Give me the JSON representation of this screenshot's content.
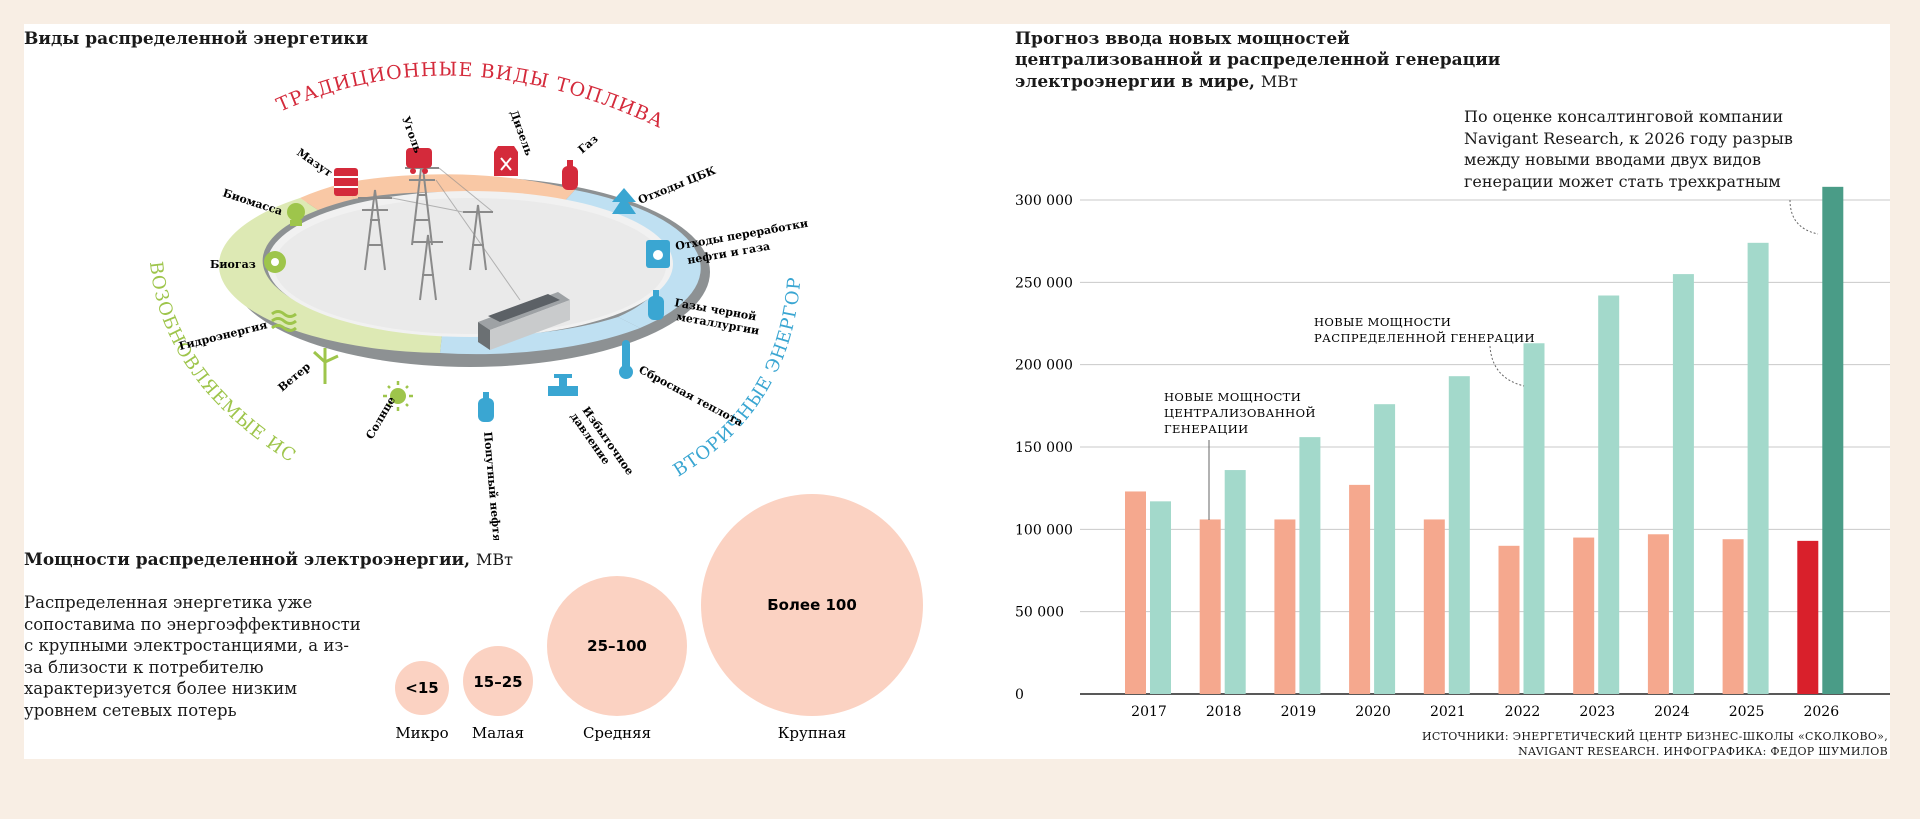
{
  "left_title": "Виды распределенной энергетики",
  "diagram": {
    "arcs": {
      "traditional": "ТРАДИЦИОННЫЕ ВИДЫ ТОПЛИВА",
      "renewable": "ВОЗОБНОВЛЯЕМЫЕ ИСТОЧНИКИ",
      "secondary": "ВТОРИЧНЫЕ ЭНЕРГОРЕСУРСЫ"
    },
    "items": [
      {
        "label": "Мазут",
        "icon": "barrel-icon",
        "group": "traditional"
      },
      {
        "label": "Уголь",
        "icon": "coal-cart-icon",
        "group": "traditional"
      },
      {
        "label": "Дизель",
        "icon": "jerrycan-icon",
        "group": "traditional"
      },
      {
        "label": "Газ",
        "icon": "gas-cylinder-icon",
        "group": "traditional"
      },
      {
        "label": "Биомасса",
        "icon": "sprout-icon",
        "group": "renewable"
      },
      {
        "label": "Биогаз",
        "icon": "biogas-icon",
        "group": "renewable"
      },
      {
        "label": "Гидроэнергия",
        "icon": "waves-icon",
        "group": "renewable"
      },
      {
        "label": "Ветер",
        "icon": "wind-turbine-icon",
        "group": "renewable"
      },
      {
        "label": "Солнце",
        "icon": "sun-icon",
        "group": "renewable"
      },
      {
        "label": "Отходы ЦБК",
        "icon": "tree-icon",
        "group": "secondary"
      },
      {
        "label": "Отходы переработки нефти и газа",
        "icon": "oil-barrel-icon",
        "group": "secondary"
      },
      {
        "label": "Газы черной металлургии",
        "icon": "gas-cylinder-icon",
        "group": "secondary"
      },
      {
        "label": "Сбросная теплота",
        "icon": "thermometer-icon",
        "group": "secondary"
      },
      {
        "label": "Избыточное давление",
        "icon": "valve-icon",
        "group": "secondary"
      },
      {
        "label": "Попутный нефтяной газ",
        "icon": "gas-cylinder-icon",
        "group": "secondary"
      }
    ]
  },
  "capacity": {
    "title": "Мощности распределенной электроэнергии,",
    "unit": "МВт",
    "description": "Распределенная энергетика уже сопоставима по энергоэффективности с крупными электростанциями, а из-за близости к потребителю характеризуется более низким уровнем сетевых потерь",
    "circles": [
      {
        "value": "<15",
        "label": "Микро"
      },
      {
        "value": "15–25",
        "label": "Малая"
      },
      {
        "value": "25–100",
        "label": "Средняя"
      },
      {
        "value": "Более 100",
        "label": "Крупная"
      }
    ]
  },
  "right_title": {
    "line1": "Прогноз ввода новых мощностей",
    "line2": "централизованной и распределенной генерации",
    "line3": "электроэнергии в мире,",
    "unit": "МВт"
  },
  "note": "По оценке консалтинговой компании Navigant Research, к 2026 году разрыв между новыми вводами двух видов генерации может стать трехкратным",
  "annotations": {
    "centralized": [
      "НОВЫЕ МОЩНОСТИ",
      "ЦЕНТРАЛИЗОВАННОЙ",
      "ГЕНЕРАЦИИ"
    ],
    "distributed": [
      "НОВЫЕ МОЩНОСТИ",
      "РАСПРЕДЕЛЕННОЙ ГЕНЕРАЦИИ"
    ]
  },
  "source": {
    "line1": "ИСТОЧНИКИ: ЭНЕРГЕТИЧЕСКИЙ ЦЕНТР БИЗНЕС-ШКОЛЫ «СКОЛКОВО»,",
    "line2": "NAVIGANT RESEARCH. ИНФОГРАФИКА: ФЕДОР ШУМИЛОВ"
  },
  "colors": {
    "centralized": "#f5a88e",
    "distributed": "#a3d9cb",
    "centralized_highlight": "#d9202b",
    "distributed_highlight": "#4a9c87",
    "circle_fill": "#fbd2c2",
    "traditional": "#d42a3b",
    "renewable": "#9ec54b",
    "secondary": "#3aa6d2"
  },
  "chart_data": {
    "type": "bar",
    "categories": [
      "2017",
      "2018",
      "2019",
      "2020",
      "2021",
      "2022",
      "2023",
      "2024",
      "2025",
      "2026"
    ],
    "series": [
      {
        "name": "Новые мощности централизованной генерации",
        "values": [
          123000,
          106000,
          106000,
          127000,
          106000,
          90000,
          95000,
          97000,
          94000,
          93000
        ]
      },
      {
        "name": "Новые мощности распределенной генерации",
        "values": [
          117000,
          136000,
          156000,
          176000,
          193000,
          213000,
          242000,
          255000,
          274000,
          308000
        ]
      }
    ],
    "yticks": [
      "0",
      "50 000",
      "100 000",
      "150 000",
      "200 000",
      "250 000",
      "300 000"
    ],
    "ylim": [
      0,
      320000
    ],
    "grid": true
  }
}
